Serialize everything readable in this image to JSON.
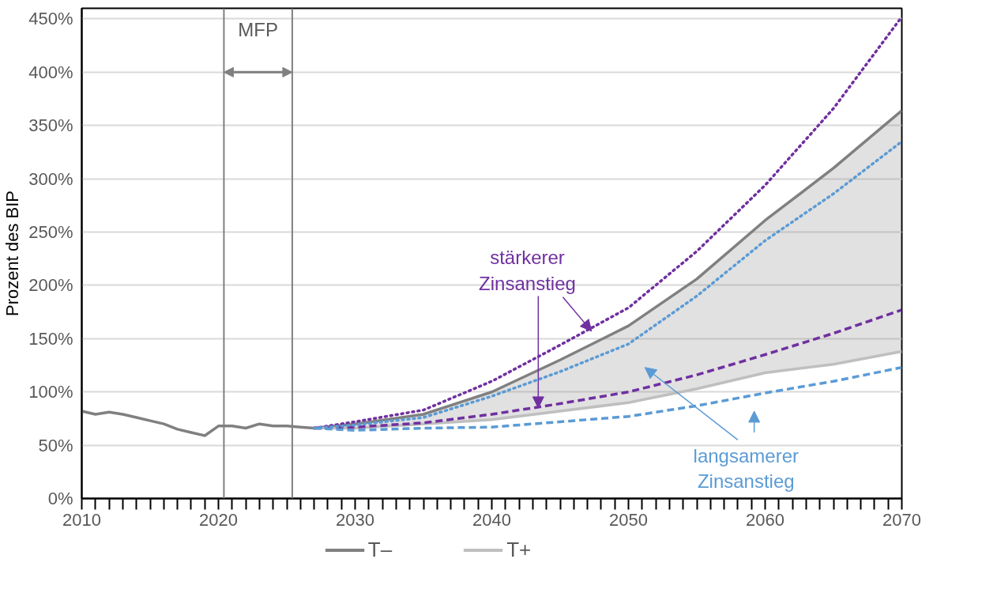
{
  "chart_data": {
    "type": "line",
    "ylabel": "Prozent des BIP",
    "xlim": [
      2010,
      2070
    ],
    "ylim": [
      0,
      460
    ],
    "xticks": [
      {
        "value": 2010,
        "label": "2010"
      },
      {
        "value": 2011,
        "label": null
      },
      {
        "value": 2012,
        "label": null
      },
      {
        "value": 2013,
        "label": null
      },
      {
        "value": 2014,
        "label": null
      },
      {
        "value": 2015,
        "label": null
      },
      {
        "value": 2016,
        "label": null
      },
      {
        "value": 2017,
        "label": null
      },
      {
        "value": 2018,
        "label": null
      },
      {
        "value": 2019,
        "label": null
      },
      {
        "value": 2020,
        "label": "2020"
      },
      {
        "value": 2021,
        "label": null
      },
      {
        "value": 2022,
        "label": null
      },
      {
        "value": 2023,
        "label": null
      },
      {
        "value": 2024,
        "label": null
      },
      {
        "value": 2025,
        "label": null
      },
      {
        "value": 2026,
        "label": null
      },
      {
        "value": 2027,
        "label": null
      },
      {
        "value": 2028,
        "label": null
      },
      {
        "value": 2029,
        "label": null
      },
      {
        "value": 2030,
        "label": "2030"
      },
      {
        "value": 2031,
        "label": null
      },
      {
        "value": 2032,
        "label": null
      },
      {
        "value": 2033,
        "label": null
      },
      {
        "value": 2034,
        "label": null
      },
      {
        "value": 2035,
        "label": null
      },
      {
        "value": 2036,
        "label": null
      },
      {
        "value": 2037,
        "label": null
      },
      {
        "value": 2038,
        "label": null
      },
      {
        "value": 2039,
        "label": null
      },
      {
        "value": 2040,
        "label": "2040"
      },
      {
        "value": 2041,
        "label": null
      },
      {
        "value": 2042,
        "label": null
      },
      {
        "value": 2043,
        "label": null
      },
      {
        "value": 2044,
        "label": null
      },
      {
        "value": 2045,
        "label": null
      },
      {
        "value": 2046,
        "label": null
      },
      {
        "value": 2047,
        "label": null
      },
      {
        "value": 2048,
        "label": null
      },
      {
        "value": 2049,
        "label": null
      },
      {
        "value": 2050,
        "label": "2050"
      },
      {
        "value": 2051,
        "label": null
      },
      {
        "value": 2052,
        "label": null
      },
      {
        "value": 2053,
        "label": null
      },
      {
        "value": 2054,
        "label": null
      },
      {
        "value": 2055,
        "label": null
      },
      {
        "value": 2056,
        "label": null
      },
      {
        "value": 2057,
        "label": null
      },
      {
        "value": 2058,
        "label": null
      },
      {
        "value": 2059,
        "label": null
      },
      {
        "value": 2060,
        "label": "2060"
      },
      {
        "value": 2061,
        "label": null
      },
      {
        "value": 2062,
        "label": null
      },
      {
        "value": 2063,
        "label": null
      },
      {
        "value": 2064,
        "label": null
      },
      {
        "value": 2065,
        "label": null
      },
      {
        "value": 2066,
        "label": null
      },
      {
        "value": 2067,
        "label": null
      },
      {
        "value": 2068,
        "label": null
      },
      {
        "value": 2069,
        "label": null
      },
      {
        "value": 2070,
        "label": "2070"
      }
    ],
    "yticks": [
      {
        "value": 0,
        "label": "0%"
      },
      {
        "value": 50,
        "label": "50%"
      },
      {
        "value": 100,
        "label": "100%"
      },
      {
        "value": 150,
        "label": "150%"
      },
      {
        "value": 200,
        "label": "200%"
      },
      {
        "value": 250,
        "label": "250%"
      },
      {
        "value": 300,
        "label": "300%"
      },
      {
        "value": 350,
        "label": "350%"
      },
      {
        "value": 400,
        "label": "400%"
      },
      {
        "value": 450,
        "label": "450%"
      }
    ],
    "grid": "y",
    "legend": "bottom",
    "series": [
      {
        "name": "T–",
        "color": "#808080",
        "line_style": "solid",
        "x": [
          2010,
          2011,
          2012,
          2013,
          2014,
          2015,
          2016,
          2017,
          2018,
          2019,
          2020,
          2021,
          2022,
          2023,
          2024,
          2025,
          2026,
          2027,
          2030,
          2035,
          2040,
          2045,
          2050,
          2055,
          2060,
          2065,
          2070
        ],
        "values": [
          82,
          79,
          81,
          79,
          76,
          73,
          70,
          65,
          62,
          59,
          68,
          68,
          66,
          70,
          68,
          68,
          67,
          66,
          70,
          79,
          100,
          130,
          162,
          206,
          261,
          310,
          364
        ],
        "lower": [
          null,
          null,
          null,
          null,
          null,
          null,
          null,
          null,
          null,
          null,
          null,
          null,
          null,
          null,
          null,
          null,
          null,
          66,
          66,
          70,
          74,
          82,
          90,
          103,
          118,
          126,
          138
        ],
        "upper": [
          null,
          null,
          null,
          null,
          null,
          null,
          null,
          null,
          null,
          null,
          null,
          null,
          null,
          null,
          null,
          null,
          null,
          66,
          70,
          79,
          100,
          130,
          162,
          206,
          261,
          310,
          364
        ]
      },
      {
        "name": "T+",
        "color": "#bfbfbf",
        "line_style": "solid",
        "x": [
          2027,
          2030,
          2035,
          2040,
          2045,
          2050,
          2055,
          2060,
          2065,
          2070
        ],
        "values": [
          66,
          66,
          70,
          74,
          82,
          90,
          103,
          118,
          126,
          138
        ]
      },
      {
        "color": "#7030a0",
        "line_style": "dotted",
        "x": [
          2027,
          2030,
          2035,
          2040,
          2045,
          2050,
          2055,
          2060,
          2065,
          2070
        ],
        "values": [
          66,
          72,
          83,
          110,
          144,
          179,
          232,
          294,
          366,
          452
        ]
      },
      {
        "color": "#7030a0",
        "line_style": "dashed",
        "x": [
          2027,
          2030,
          2035,
          2040,
          2045,
          2050,
          2055,
          2060,
          2065,
          2070
        ],
        "values": [
          66,
          67,
          71,
          79,
          89,
          100,
          116,
          135,
          155,
          177
        ]
      },
      {
        "color": "#5b9bd5",
        "line_style": "dotted",
        "x": [
          2027,
          2030,
          2035,
          2040,
          2045,
          2050,
          2055,
          2060,
          2065,
          2070
        ],
        "values": [
          66,
          69,
          76,
          96,
          119,
          145,
          190,
          242,
          286,
          335
        ]
      },
      {
        "color": "#5b9bd5",
        "line_style": "dashed",
        "x": [
          2027,
          2030,
          2035,
          2040,
          2045,
          2050,
          2055,
          2060,
          2065,
          2070
        ],
        "values": [
          66,
          64,
          66,
          67,
          72,
          77,
          87,
          99,
          110,
          123
        ]
      }
    ],
    "ref_lines": [
      {
        "axis": "x",
        "value": 2020.4,
        "color": "#808080"
      },
      {
        "axis": "x",
        "value": 2025.4,
        "color": "#808080"
      }
    ],
    "annotations": [
      "MFP",
      {
        "text": "stärkerer\nZinsanstieg",
        "x": 2047.3,
        "y": 157
      },
      "langsamerer\nZinsanstieg"
    ]
  }
}
